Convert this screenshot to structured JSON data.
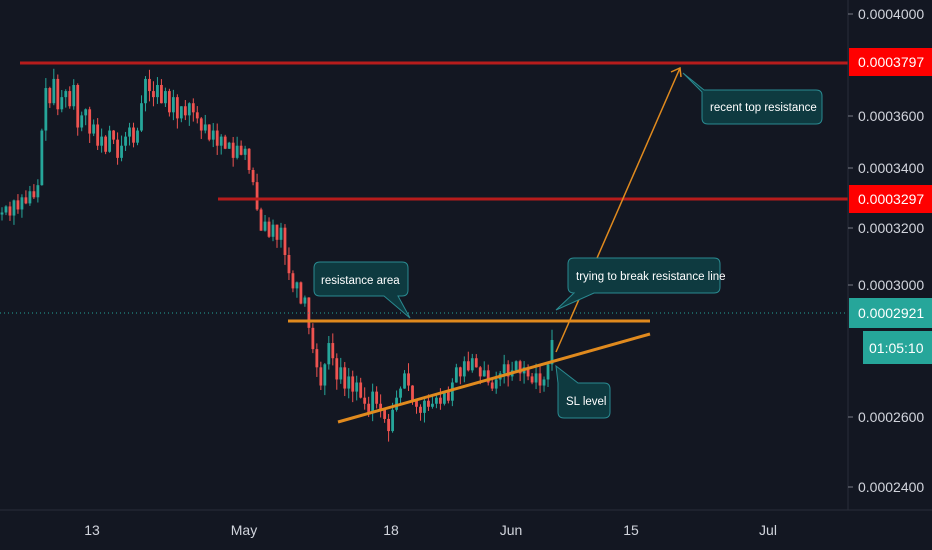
{
  "chart_data": {
    "type": "candlestick",
    "y_axis": {
      "ticks": [
        "0.0004000",
        "0.0003600",
        "0.0003400",
        "0.0003200",
        "0.0003000",
        "0.0002600",
        "0.0002400"
      ],
      "range": [
        0.000236,
        0.000404
      ]
    },
    "x_axis": {
      "ticks": [
        "13",
        "May",
        "18",
        "Jun",
        "15",
        "Jul"
      ]
    },
    "price_tags": [
      {
        "value": "0.0003797",
        "color": "#ff0000"
      },
      {
        "value": "0.0003297",
        "color": "#ff0000"
      },
      {
        "value": "0.0002921",
        "color": "#26a69a"
      }
    ],
    "countdown": "01:05:10",
    "horizontal_levels": [
      {
        "price": 0.0003797,
        "color": "#b71c1c"
      },
      {
        "price": 0.0003297,
        "color": "#b71c1c"
      },
      {
        "price": 0.0002921,
        "color": "#26a69a",
        "style": "dotted"
      }
    ],
    "annotations": [
      {
        "text": "recent top resistance"
      },
      {
        "text": "trying to break resistance line"
      },
      {
        "text": "resistance area"
      },
      {
        "text": "SL level"
      }
    ],
    "series": [
      {
        "values": [
          0.000334,
          0.000336,
          0.000333,
          0.000338,
          0.000335,
          0.000339,
          0.000337,
          0.000341,
          0.000339,
          0.000343,
          0.000361,
          0.000375,
          0.00037,
          0.000378,
          0.000368,
          0.000372,
          0.000374,
          0.000369,
          0.000376,
          0.000362,
          0.000366,
          0.000368,
          0.00036,
          0.000363,
          0.000356,
          0.000359,
          0.000354,
          0.000361,
          0.000358,
          0.000352,
          0.000356,
          0.000359,
          0.000362,
          0.000357,
          0.000361,
          0.00037,
          0.000378,
          0.000374,
          0.000372,
          0.000376,
          0.00037,
          0.000374,
          0.000367,
          0.000372,
          0.000365,
          0.000369,
          0.000366,
          0.00037,
          0.000367,
          0.000365,
          0.000361,
          0.000363,
          0.000358,
          0.000361,
          0.000356,
          0.000359,
          0.000355,
          0.000357,
          0.000352,
          0.000356,
          0.000353,
          0.000355,
          0.000348,
          0.000344,
          0.000335,
          0.000328,
          0.000331,
          0.000326,
          0.00033,
          0.000325,
          0.000329,
          0.00032,
          0.000314,
          0.000309,
          0.000311,
          0.000304,
          0.000306,
          0.000296,
          0.000289,
          0.000283,
          0.000277,
          0.000284,
          0.000291,
          0.000286,
          0.000279,
          0.000283,
          0.000276,
          0.00028,
          0.000275,
          0.000278,
          0.000273,
          0.000271,
          0.000268,
          0.000275,
          0.000271,
          0.000269,
          0.000266,
          0.000262,
          0.000269,
          0.000273,
          0.000276,
          0.000281,
          0.000277,
          0.000272,
          0.00027,
          0.000268,
          0.000272,
          0.00027,
          0.000271,
          0.000273,
          0.000271,
          0.000275,
          0.000272,
          0.000278,
          0.000283,
          0.00028,
          0.000285,
          0.000282,
          0.000286,
          0.000283,
          0.00028,
          0.000282,
          0.000278,
          0.000276,
          0.000279,
          0.000281,
          0.000284,
          0.00028,
          0.000282,
          0.000285,
          0.000281,
          0.000283,
          0.00028,
          0.000278,
          0.000281,
          0.000277,
          0.000279,
          0.000284,
          0.000292
        ]
      }
    ]
  }
}
